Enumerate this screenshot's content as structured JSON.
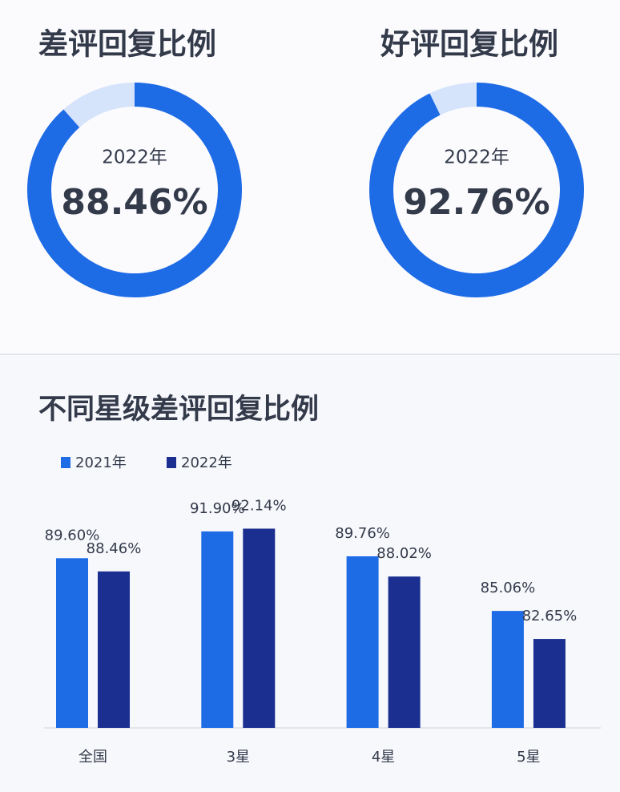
{
  "chart_data": [
    {
      "type": "donut",
      "title": "差评回复比例",
      "subtitle": "2022年",
      "values": [
        88.46
      ],
      "value_labels": [
        "88.46%"
      ],
      "ylim": [
        0,
        100
      ],
      "color": "#1e6be6",
      "track_color": "#d5e3fb"
    },
    {
      "type": "donut",
      "title": "好评回复比例",
      "subtitle": "2022年",
      "values": [
        92.76
      ],
      "value_labels": [
        "92.76%"
      ],
      "ylim": [
        0,
        100
      ],
      "color": "#1e6be6",
      "track_color": "#d5e3fb"
    },
    {
      "type": "bar",
      "title": "不同星级差评回复比例",
      "categories": [
        "全国",
        "3星",
        "4星",
        "5星"
      ],
      "series": [
        {
          "name": "2021年",
          "color": "#1e6be6",
          "values": [
            89.6,
            91.9,
            89.76,
            85.06
          ],
          "value_labels": [
            "89.60%",
            "91.90%",
            "89.76%",
            "85.06%"
          ]
        },
        {
          "name": "2022年",
          "color": "#1a2f8f",
          "values": [
            88.46,
            92.14,
            88.02,
            82.65
          ],
          "value_labels": [
            "88.46%",
            "92.14%",
            "88.02%",
            "82.65%"
          ]
        }
      ],
      "ylim": [
        75,
        95
      ],
      "legend": "top-left"
    }
  ]
}
